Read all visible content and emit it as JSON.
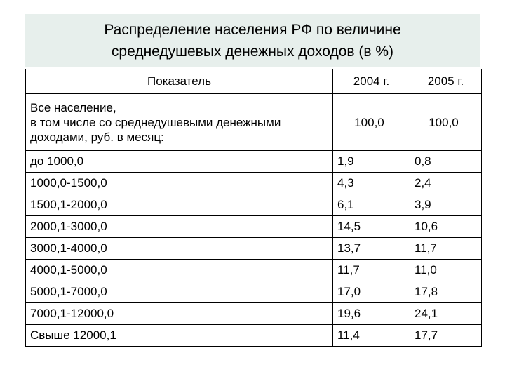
{
  "title": {
    "line1": "Распределение населения РФ по величине",
    "line2": "среднедушевых денежных доходов (в %)"
  },
  "table": {
    "headers": [
      "Показатель",
      "2004 г.",
      "2005 г."
    ],
    "total": {
      "line1": "Все население,",
      "line2": "в том числе со среднедушевыми денежными",
      "line3": "доходами, руб. в месяц:",
      "v2004": "100,0",
      "v2005": "100,0"
    },
    "rows": [
      {
        "label": "до 1000,0",
        "v2004": "1,9",
        "v2005": "0,8"
      },
      {
        "label": "1000,0-1500,0",
        "v2004": "4,3",
        "v2005": "2,4"
      },
      {
        "label": "1500,1-2000,0",
        "v2004": "6,1",
        "v2005": "3,9"
      },
      {
        "label": "2000,1-3000,0",
        "v2004": "14,5",
        "v2005": "10,6"
      },
      {
        "label": "3000,1-4000,0",
        "v2004": "13,7",
        "v2005": "11,7"
      },
      {
        "label": "4000,1-5000,0",
        "v2004": "11,7",
        "v2005": "11,0"
      },
      {
        "label": "5000,1-7000,0",
        "v2004": "17,0",
        "v2005": "17,8"
      },
      {
        "label": "7000,1-12000,0",
        "v2004": "19,6",
        "v2005": "24,1"
      },
      {
        "label": "Свыше 12000,1",
        "v2004": "11,4",
        "v2005": "17,7"
      }
    ]
  }
}
